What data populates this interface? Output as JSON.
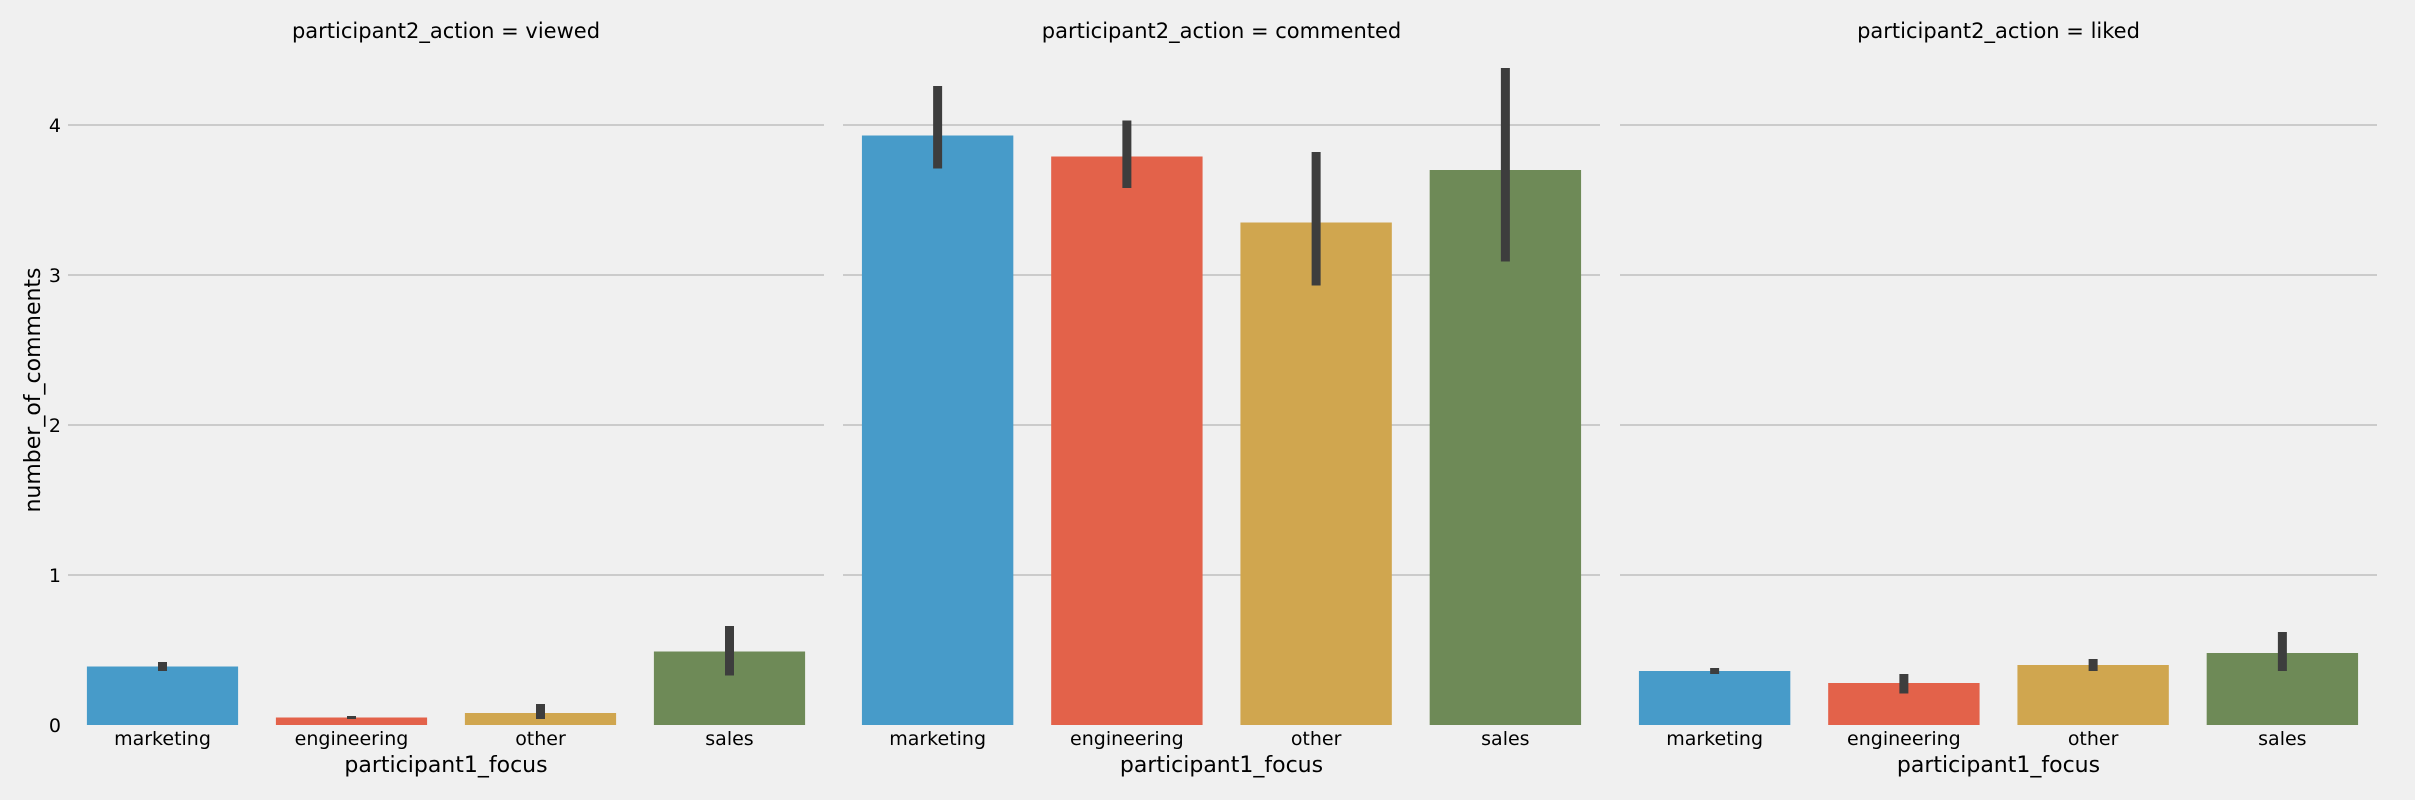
{
  "chart_data": {
    "type": "bar",
    "layout": "facet-columns",
    "ylabel": "number_of_comments",
    "xlabel": "participant1_focus",
    "ylim": [
      0,
      4.5
    ],
    "yticks": [
      0,
      1,
      2,
      3,
      4
    ],
    "grid": true,
    "categories": [
      "marketing",
      "engineering",
      "other",
      "sales"
    ],
    "colors": [
      "#479bc9",
      "#e3624a",
      "#d0a64f",
      "#6e8a57"
    ],
    "errorbar_color": "#3d3d3d",
    "facets": [
      {
        "title": "participant2_action = viewed",
        "values": [
          0.39,
          0.05,
          0.08,
          0.49
        ],
        "ci": [
          [
            0.36,
            0.42
          ],
          [
            0.04,
            0.06
          ],
          [
            0.04,
            0.14
          ],
          [
            0.33,
            0.66
          ]
        ]
      },
      {
        "title": "participant2_action = commented",
        "values": [
          3.93,
          3.79,
          3.35,
          3.7
        ],
        "ci": [
          [
            3.71,
            4.26
          ],
          [
            3.58,
            4.03
          ],
          [
            2.93,
            3.82
          ],
          [
            3.09,
            4.38
          ]
        ]
      },
      {
        "title": "participant2_action = liked",
        "values": [
          0.36,
          0.28,
          0.4,
          0.48
        ],
        "ci": [
          [
            0.34,
            0.38
          ],
          [
            0.21,
            0.34
          ],
          [
            0.36,
            0.44
          ],
          [
            0.36,
            0.62
          ]
        ]
      }
    ]
  }
}
